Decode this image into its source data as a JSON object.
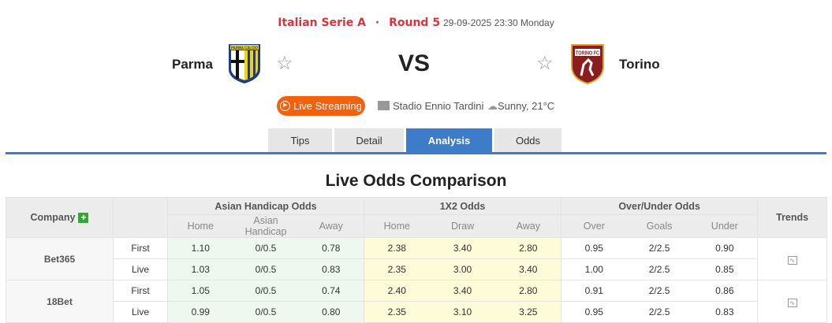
{
  "match": {
    "league": "Italian Serie A",
    "separator": "·",
    "round": "Round 5",
    "datetime": "29-09-2025 23:30 Monday",
    "home": "Parma",
    "away": "Torino",
    "vs": "VS",
    "home_crest_text": "PARMA CALCIO",
    "away_crest_text": "TORINO FC",
    "live_label": "Live Streaming",
    "stadium": "Stadio Ennio Tardini",
    "weather": "Sunny, 21°C"
  },
  "tabs": [
    {
      "label": "Tips"
    },
    {
      "label": "Detail"
    },
    {
      "label": "Analysis",
      "active": true
    },
    {
      "label": "Odds"
    }
  ],
  "section_title": "Live Odds Comparison",
  "table": {
    "headers": {
      "company": "Company",
      "ah": "Asian Handicap Odds",
      "x12": "1X2 Odds",
      "ou": "Over/Under Odds",
      "trends": "Trends"
    },
    "sub": {
      "ah": [
        "Home",
        "Asian Handicap",
        "Away"
      ],
      "x12": [
        "Home",
        "Draw",
        "Away"
      ],
      "ou": [
        "Over",
        "Goals",
        "Under"
      ]
    },
    "companies": [
      {
        "name": "Bet365",
        "rows": [
          {
            "type": "First",
            "ah": [
              "1.10",
              "0/0.5",
              "0.78"
            ],
            "x12": [
              "2.38",
              "3.40",
              "2.80"
            ],
            "ou": [
              "0.95",
              "2/2.5",
              "0.90"
            ]
          },
          {
            "type": "Live",
            "ah": [
              "1.03",
              "0/0.5",
              "0.83"
            ],
            "x12": [
              "2.35",
              "3.00",
              "3.40"
            ],
            "ou": [
              "1.00",
              "2/2.5",
              "0.85"
            ]
          }
        ]
      },
      {
        "name": "18Bet",
        "rows": [
          {
            "type": "First",
            "ah": [
              "1.05",
              "0/0.5",
              "0.74"
            ],
            "x12": [
              "2.40",
              "3.40",
              "2.80"
            ],
            "ou": [
              "0.91",
              "2/2.5",
              "0.86"
            ]
          },
          {
            "type": "Live",
            "ah": [
              "0.99",
              "0/0.5",
              "0.80"
            ],
            "x12": [
              "2.35",
              "3.10",
              "3.25"
            ],
            "ou": [
              "0.95",
              "2/2.5",
              "0.83"
            ]
          }
        ]
      }
    ]
  },
  "colors": {
    "accent": "#3d7cc9",
    "league": "#d8353b",
    "live": "#f4600c",
    "ah_bg": "#eef8ee",
    "x12_bg": "#fdfbd8"
  }
}
